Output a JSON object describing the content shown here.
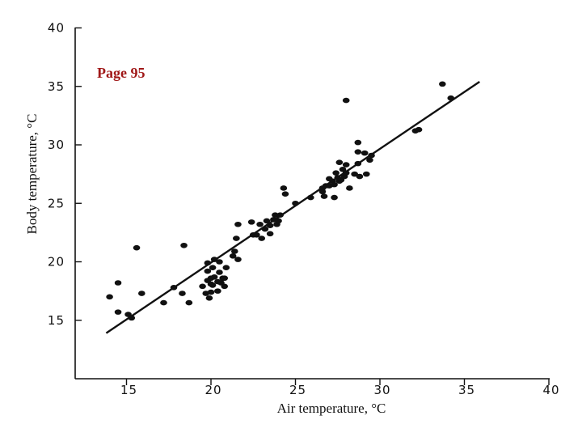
{
  "page_label": "Page 95",
  "colors": {
    "ink": "#111111",
    "page_label": "#a01818",
    "background": "#ffffff"
  },
  "chart_data": {
    "type": "scatter",
    "title": "",
    "xlabel": "Air temperature, °C",
    "ylabel": "Body temperature, °C",
    "xlim": [
      10,
      40
    ],
    "ylim": [
      10,
      40
    ],
    "x_ticks": [
      15,
      20,
      25,
      30,
      35,
      40
    ],
    "y_ticks": [
      15,
      20,
      25,
      30,
      35,
      40
    ],
    "x_tick_labels": [
      "15",
      "20",
      "25",
      "30",
      "35",
      "40"
    ],
    "y_tick_labels": [
      "15",
      "20",
      "25",
      "30",
      "35",
      "40"
    ],
    "grid": false,
    "series": [
      {
        "type": "scatter",
        "points": [
          [
            14.0,
            17.0
          ],
          [
            14.5,
            18.2
          ],
          [
            14.5,
            15.7
          ],
          [
            15.1,
            15.5
          ],
          [
            15.3,
            15.2
          ],
          [
            15.6,
            21.2
          ],
          [
            15.9,
            17.3
          ],
          [
            17.2,
            16.5
          ],
          [
            17.8,
            17.8
          ],
          [
            18.3,
            17.3
          ],
          [
            18.4,
            21.4
          ],
          [
            18.7,
            16.5
          ],
          [
            19.5,
            17.9
          ],
          [
            19.7,
            17.3
          ],
          [
            19.8,
            18.4
          ],
          [
            19.8,
            19.2
          ],
          [
            19.8,
            19.9
          ],
          [
            19.9,
            16.9
          ],
          [
            20.0,
            17.4
          ],
          [
            20.0,
            18.1
          ],
          [
            20.0,
            18.6
          ],
          [
            20.1,
            19.5
          ],
          [
            20.1,
            18.0
          ],
          [
            20.2,
            20.2
          ],
          [
            20.2,
            18.7
          ],
          [
            20.4,
            18.3
          ],
          [
            20.4,
            17.5
          ],
          [
            20.5,
            19.1
          ],
          [
            20.5,
            20.0
          ],
          [
            20.6,
            18.2
          ],
          [
            20.7,
            18.6
          ],
          [
            20.8,
            17.9
          ],
          [
            20.8,
            18.6
          ],
          [
            20.9,
            19.5
          ],
          [
            21.3,
            20.5
          ],
          [
            21.4,
            20.9
          ],
          [
            21.5,
            22.0
          ],
          [
            21.6,
            20.2
          ],
          [
            21.6,
            23.2
          ],
          [
            22.4,
            23.4
          ],
          [
            22.5,
            22.3
          ],
          [
            22.7,
            22.3
          ],
          [
            22.9,
            23.2
          ],
          [
            23.0,
            22.0
          ],
          [
            23.2,
            22.8
          ],
          [
            23.3,
            23.5
          ],
          [
            23.5,
            23.1
          ],
          [
            23.5,
            22.4
          ],
          [
            23.7,
            23.6
          ],
          [
            23.8,
            24.0
          ],
          [
            23.9,
            23.2
          ],
          [
            24.0,
            23.5
          ],
          [
            24.1,
            24.0
          ],
          [
            24.3,
            26.3
          ],
          [
            24.4,
            25.8
          ],
          [
            25.0,
            25.0
          ],
          [
            25.9,
            25.5
          ],
          [
            26.6,
            26.0
          ],
          [
            26.6,
            26.3
          ],
          [
            26.7,
            25.6
          ],
          [
            26.8,
            26.5
          ],
          [
            27.0,
            26.5
          ],
          [
            27.0,
            27.1
          ],
          [
            27.2,
            26.9
          ],
          [
            27.3,
            26.6
          ],
          [
            27.3,
            25.5
          ],
          [
            27.4,
            27.6
          ],
          [
            27.5,
            27.2
          ],
          [
            27.6,
            26.9
          ],
          [
            27.6,
            28.5
          ],
          [
            27.7,
            27.0
          ],
          [
            27.8,
            27.9
          ],
          [
            27.9,
            27.3
          ],
          [
            28.0,
            33.8
          ],
          [
            28.0,
            27.6
          ],
          [
            28.0,
            28.3
          ],
          [
            28.2,
            26.3
          ],
          [
            28.5,
            27.5
          ],
          [
            28.7,
            30.2
          ],
          [
            28.7,
            29.4
          ],
          [
            28.7,
            28.4
          ],
          [
            28.8,
            27.3
          ],
          [
            29.1,
            29.3
          ],
          [
            29.2,
            27.5
          ],
          [
            29.4,
            28.7
          ],
          [
            29.5,
            29.1
          ],
          [
            32.1,
            31.2
          ],
          [
            32.3,
            31.3
          ],
          [
            33.7,
            35.2
          ],
          [
            34.2,
            34.0
          ]
        ]
      },
      {
        "type": "line",
        "points": [
          [
            13.8,
            13.9
          ],
          [
            35.9,
            35.4
          ]
        ]
      }
    ]
  }
}
